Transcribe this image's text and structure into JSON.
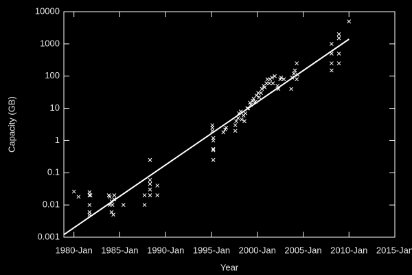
{
  "chart_data": {
    "type": "scatter",
    "x_label": "Year",
    "y_label": "Capacity (GB)",
    "log_y": true,
    "xlim": [
      1978.9,
      2015.0
    ],
    "ylim": [
      0.001,
      10000
    ],
    "xticks": [
      {
        "value": 1980,
        "label": "1980-Jan"
      },
      {
        "value": 1985,
        "label": "1985-Jan"
      },
      {
        "value": 1990,
        "label": "1990-Jan"
      },
      {
        "value": 1995,
        "label": "1995-Jan"
      },
      {
        "value": 2000,
        "label": "2000-Jan"
      },
      {
        "value": 2005,
        "label": "2005-Jan"
      },
      {
        "value": 2010,
        "label": "2010-Jan"
      },
      {
        "value": 2015,
        "label": "2015-Jan"
      }
    ],
    "yticks": [
      0.001,
      0.01,
      0.1,
      1,
      10,
      100,
      1000,
      10000
    ],
    "series": [
      {
        "color": "#ffffff",
        "marker": "x",
        "x": [
          1980.0,
          1980.5,
          1981.7,
          1981.7,
          1981.7,
          1981.7,
          1981.7,
          1981.8,
          1983.8,
          1983.9,
          1984.1,
          1984.2,
          1984.4,
          1983.9,
          1984.1,
          1984.3,
          1984.4,
          1985.4,
          1987.7,
          1987.7,
          1988.3,
          1988.3,
          1988.3,
          1988.3,
          1988.3,
          1989.1,
          1989.1,
          1995.1,
          1995.1,
          1995.1,
          1995.2,
          1995.2,
          1995.2,
          1995.2,
          1995.2,
          1996.3,
          1996.5,
          1996.6,
          1997.6,
          1997.6,
          1997.7,
          1997.9,
          1998.0,
          1998.2,
          1998.3,
          1998.5,
          1998.6,
          1998.7,
          1998.9,
          1999.0,
          1999.2,
          1999.3,
          1999.5,
          1999.6,
          1999.8,
          1999.9,
          2000.1,
          2000.2,
          2000.4,
          2000.5,
          2000.7,
          2000.8,
          2001.0,
          2001.1,
          2001.3,
          2001.4,
          2001.6,
          2001.7,
          2001.9,
          2002.2,
          2002.3,
          2002.5,
          2002.6,
          2002.9,
          2003.7,
          2003.8,
          2004.0,
          2004.1,
          2004.3,
          2004.3,
          2004.4,
          2008.1,
          2008.1,
          2008.1,
          2008.1,
          2008.9,
          2008.9,
          2008.9,
          2008.9,
          2010.0
        ],
        "values": [
          0.026,
          0.018,
          0.025,
          0.02,
          0.01,
          0.006,
          0.005,
          0.02,
          0.02,
          0.018,
          0.013,
          0.01,
          0.02,
          0.01,
          0.006,
          0.005,
          0.015,
          0.01,
          0.02,
          0.01,
          0.25,
          0.06,
          0.045,
          0.03,
          0.02,
          0.04,
          0.02,
          3,
          2.5,
          2,
          1.2,
          1,
          0.55,
          0.5,
          0.25,
          1.8,
          2.2,
          2.5,
          2,
          3,
          4,
          5,
          7,
          8,
          4.5,
          6,
          4,
          7,
          10,
          10,
          15,
          13,
          17,
          20,
          16,
          25,
          30,
          22,
          30,
          40,
          50,
          45,
          60,
          80,
          60,
          80,
          90,
          60,
          100,
          50,
          40,
          80,
          90,
          80,
          40,
          90,
          120,
          150,
          250,
          80,
          110,
          1000,
          500,
          250,
          150,
          1500,
          2000,
          500,
          250,
          5000
        ]
      },
      {
        "color": "#ffffff",
        "line": true,
        "x": [
          1978.9,
          2010.0
        ],
        "values": [
          0.0012,
          1400
        ]
      }
    ]
  }
}
